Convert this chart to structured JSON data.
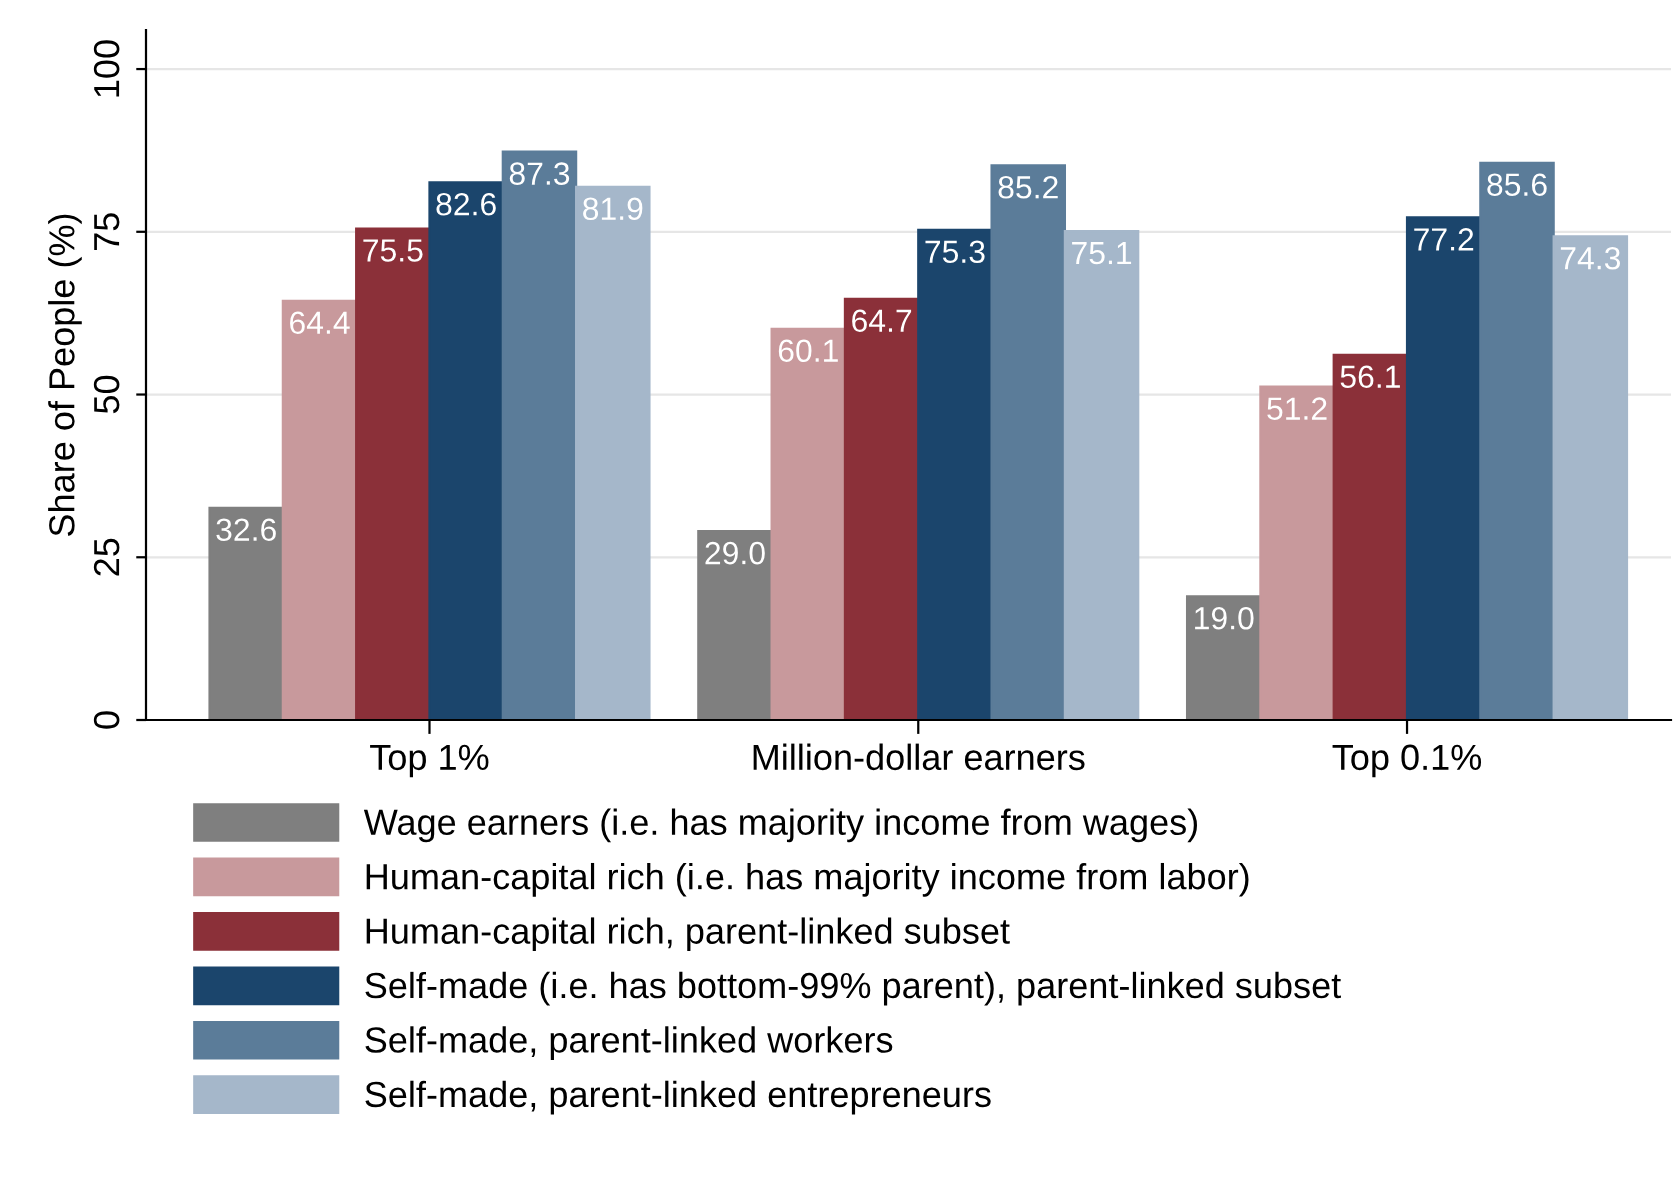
{
  "chart_data": {
    "type": "bar",
    "ylabel": "Share of People (%)",
    "categories": [
      "Top 1%",
      "Million-dollar earners",
      "Top 0.1%"
    ],
    "series": [
      {
        "name": "Wage earners (i.e. has majority income from wages)",
        "color": "#7f7f7f",
        "values": [
          32.6,
          29.0,
          19.0
        ],
        "value_labels": [
          "32.6",
          "29.0",
          "19.0"
        ]
      },
      {
        "name": "Human-capital rich (i.e. has majority income from labor)",
        "color": "#c8999c",
        "values": [
          64.4,
          60.1,
          51.2
        ]
      },
      {
        "name": "Human-capital rich, parent-linked subset",
        "color": "#8b3039",
        "values": [
          75.5,
          64.7,
          56.1
        ]
      },
      {
        "name": "Self-made (i.e. has bottom-99% parent), parent-linked subset",
        "color": "#1b456c",
        "values": [
          82.6,
          75.3,
          77.2
        ]
      },
      {
        "name": "Self-made, parent-linked workers",
        "color": "#5b7c99",
        "values": [
          87.3,
          85.2,
          85.6
        ]
      },
      {
        "name": "Self-made, parent-linked entrepreneurs",
        "color": "#a5b7ca",
        "values": [
          81.9,
          75.1,
          74.3
        ]
      }
    ],
    "ylim": [
      0,
      106
    ],
    "yticks": [
      0,
      25,
      50,
      75,
      100
    ],
    "grid": "y",
    "legend": "bottom",
    "data_labels": true
  }
}
